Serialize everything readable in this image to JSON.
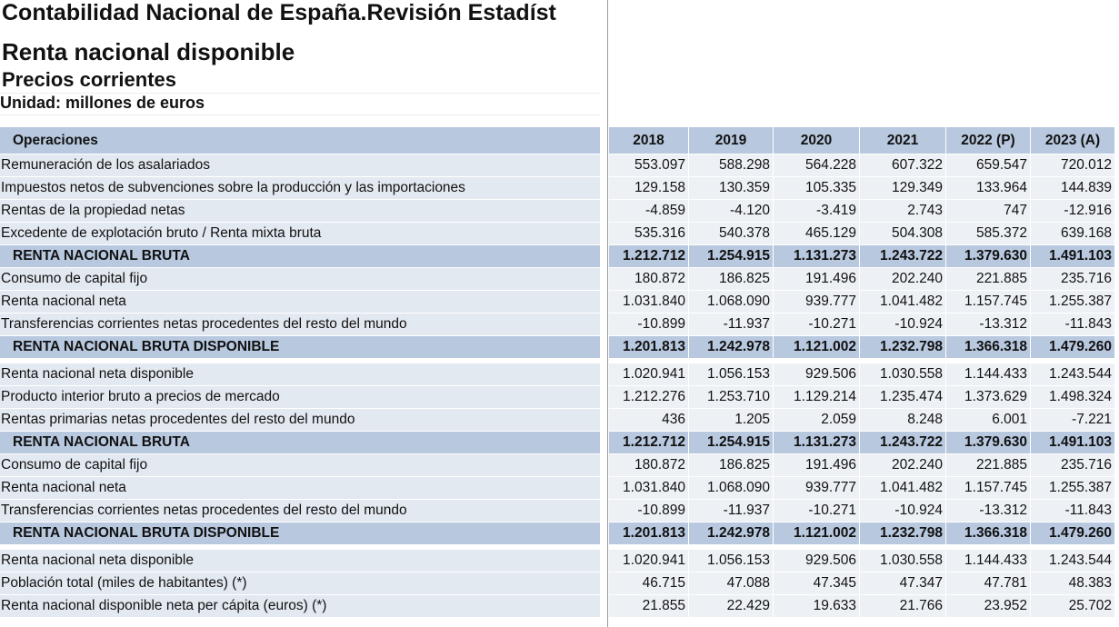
{
  "header": {
    "title": "Contabilidad Nacional de España.Revisión Estadíst",
    "subtitle": "Renta nacional disponible",
    "prices": "Precios corrientes",
    "unit": "Unidad: millones de euros"
  },
  "table": {
    "columns": [
      "Operaciones",
      "2018",
      "2019",
      "2020",
      "2021",
      "2022 (P)",
      "2023 (A)"
    ],
    "rows": [
      {
        "label": "Remuneración de los asalariados",
        "values": [
          "553.097",
          "588.298",
          "564.228",
          "607.322",
          "659.547",
          "720.012"
        ]
      },
      {
        "label": "Impuestos netos de subvenciones sobre la producción y las importaciones",
        "values": [
          "129.158",
          "130.359",
          "105.335",
          "129.349",
          "133.964",
          "144.839"
        ]
      },
      {
        "label": "Rentas de la propiedad netas",
        "values": [
          "-4.859",
          "-4.120",
          "-3.419",
          "2.743",
          "747",
          "-12.916"
        ]
      },
      {
        "label": "Excedente de explotación bruto / Renta mixta bruta",
        "values": [
          "535.316",
          "540.378",
          "465.129",
          "504.308",
          "585.372",
          "639.168"
        ]
      },
      {
        "label": "RENTA NACIONAL BRUTA",
        "emphasis": true,
        "values": [
          "1.212.712",
          "1.254.915",
          "1.131.273",
          "1.243.722",
          "1.379.630",
          "1.491.103"
        ]
      },
      {
        "label": "Consumo de capital fijo",
        "values": [
          "180.872",
          "186.825",
          "191.496",
          "202.240",
          "221.885",
          "235.716"
        ]
      },
      {
        "label": "Renta nacional neta",
        "values": [
          "1.031.840",
          "1.068.090",
          "939.777",
          "1.041.482",
          "1.157.745",
          "1.255.387"
        ]
      },
      {
        "label": "Transferencias corrientes netas procedentes del resto del mundo",
        "values": [
          "-10.899",
          "-11.937",
          "-10.271",
          "-10.924",
          "-13.312",
          "-11.843"
        ]
      },
      {
        "label": "RENTA NACIONAL BRUTA DISPONIBLE",
        "emphasis": true,
        "gap_after": true,
        "values": [
          "1.201.813",
          "1.242.978",
          "1.121.002",
          "1.232.798",
          "1.366.318",
          "1.479.260"
        ]
      },
      {
        "label": "Renta nacional neta disponible",
        "values": [
          "1.020.941",
          "1.056.153",
          "929.506",
          "1.030.558",
          "1.144.433",
          "1.243.544"
        ]
      },
      {
        "label": "Producto interior bruto a precios de mercado",
        "values": [
          "1.212.276",
          "1.253.710",
          "1.129.214",
          "1.235.474",
          "1.373.629",
          "1.498.324"
        ]
      },
      {
        "label": "Rentas primarias netas procedentes del resto del mundo",
        "values": [
          "436",
          "1.205",
          "2.059",
          "8.248",
          "6.001",
          "-7.221"
        ]
      },
      {
        "label": "RENTA NACIONAL BRUTA",
        "emphasis": true,
        "values": [
          "1.212.712",
          "1.254.915",
          "1.131.273",
          "1.243.722",
          "1.379.630",
          "1.491.103"
        ]
      },
      {
        "label": "Consumo de capital fijo",
        "values": [
          "180.872",
          "186.825",
          "191.496",
          "202.240",
          "221.885",
          "235.716"
        ]
      },
      {
        "label": "Renta nacional neta",
        "values": [
          "1.031.840",
          "1.068.090",
          "939.777",
          "1.041.482",
          "1.157.745",
          "1.255.387"
        ]
      },
      {
        "label": "Transferencias corrientes netas procedentes del resto del mundo",
        "values": [
          "-10.899",
          "-11.937",
          "-10.271",
          "-10.924",
          "-13.312",
          "-11.843"
        ]
      },
      {
        "label": "RENTA NACIONAL BRUTA DISPONIBLE",
        "emphasis": true,
        "gap_after": true,
        "values": [
          "1.201.813",
          "1.242.978",
          "1.121.002",
          "1.232.798",
          "1.366.318",
          "1.479.260"
        ]
      },
      {
        "label": "Renta nacional neta disponible",
        "values": [
          "1.020.941",
          "1.056.153",
          "929.506",
          "1.030.558",
          "1.144.433",
          "1.243.544"
        ]
      },
      {
        "label": "Población total (miles de habitantes) (*)",
        "values": [
          "46.715",
          "47.088",
          "47.345",
          "47.347",
          "47.781",
          "48.383"
        ]
      },
      {
        "label": "Renta nacional disponible neta per cápita (euros) (*)",
        "values": [
          "21.855",
          "22.429",
          "19.633",
          "21.766",
          "23.952",
          "25.702"
        ]
      }
    ]
  }
}
